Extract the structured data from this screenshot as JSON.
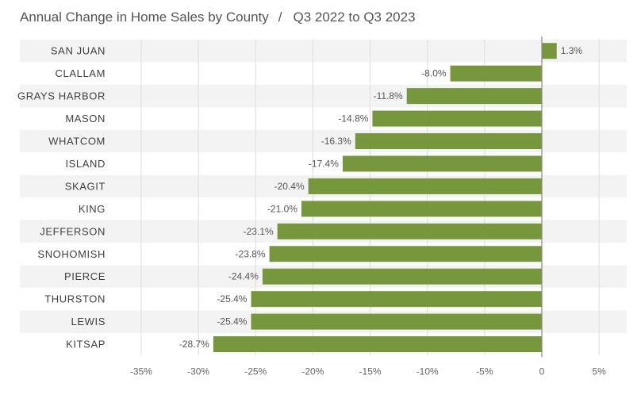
{
  "chart_data": {
    "type": "bar",
    "orientation": "horizontal",
    "title": "Annual Change in Home Sales by County",
    "subtitle": "Q3 2022 to Q3 2023",
    "categories": [
      "SAN JUAN",
      "CLALLAM",
      "GRAYS HARBOR",
      "MASON",
      "WHATCOM",
      "ISLAND",
      "SKAGIT",
      "KING",
      "JEFFERSON",
      "SNOHOMISH",
      "PIERCE",
      "THURSTON",
      "LEWIS",
      "KITSAP"
    ],
    "values": [
      1.3,
      -8.0,
      -11.8,
      -14.8,
      -16.3,
      -17.4,
      -20.4,
      -21.0,
      -23.1,
      -23.8,
      -24.4,
      -25.4,
      -25.4,
      -28.7
    ],
    "value_labels": [
      "1.3%",
      "-8.0%",
      "-11.8%",
      "-14.8%",
      "-16.3%",
      "-17.4%",
      "-20.4%",
      "-21.0%",
      "-23.1%",
      "-23.8%",
      "-24.4%",
      "-25.4%",
      "-25.4%",
      "-28.7%"
    ],
    "xlim": [
      -35,
      5
    ],
    "xticks": [
      -35,
      -30,
      -25,
      -20,
      -15,
      -10,
      -5,
      0,
      5
    ],
    "xtick_labels": [
      "-35%",
      "-30%",
      "-25%",
      "-20%",
      "-15%",
      "-10%",
      "-5%",
      "0",
      "5%"
    ],
    "grid": true,
    "bar_color": "#77973d",
    "stripe_color": "#f3f3f3"
  }
}
